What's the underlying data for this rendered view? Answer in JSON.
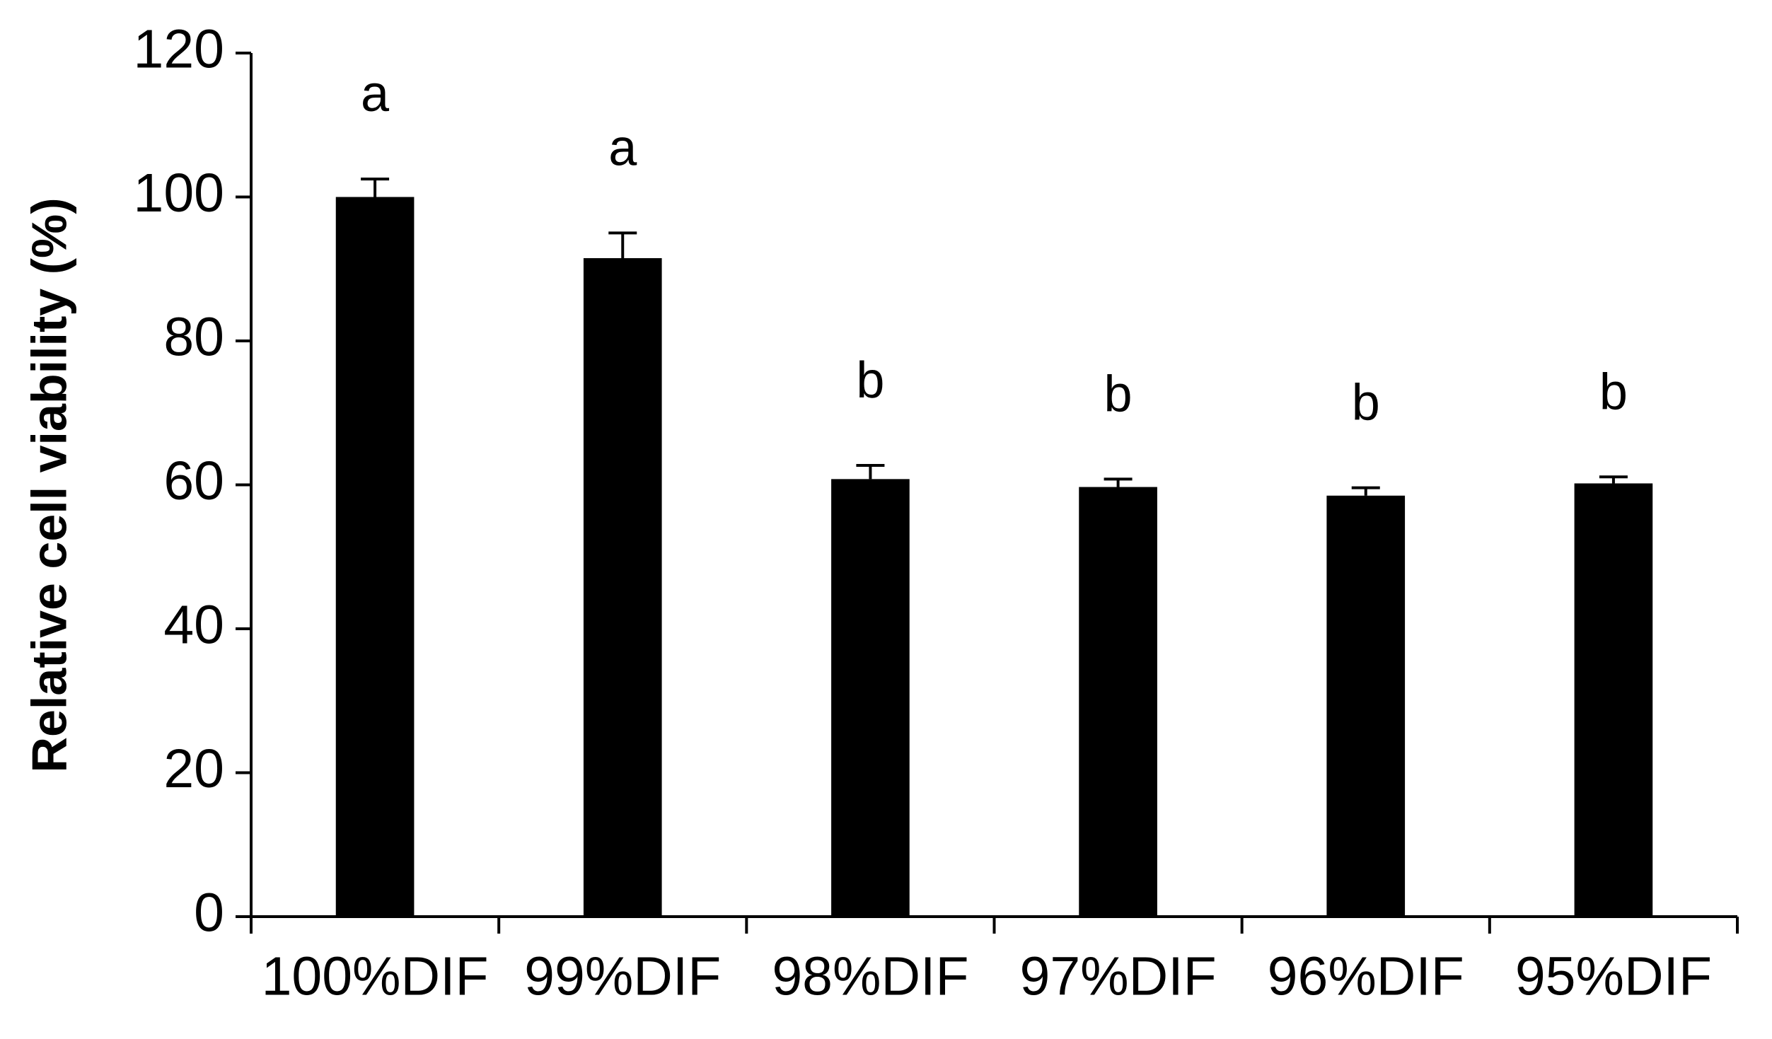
{
  "chart_data": {
    "type": "bar",
    "y_label": "Relative cell viability (%)",
    "categories": [
      "100%DIF",
      "99%DIF",
      "98%DIF",
      "97%DIF",
      "96%DIF",
      "95%DIF"
    ],
    "values": [
      100,
      91.5,
      60.8,
      59.7,
      58.5,
      60.2
    ],
    "errors": [
      2.5,
      3.5,
      1.9,
      1.1,
      1.1,
      0.9
    ],
    "annotations": [
      "a",
      "a",
      "b",
      "b",
      "b",
      "b"
    ],
    "color": "#000000",
    "ylim": [
      0,
      120
    ],
    "yticks": [
      0,
      20,
      40,
      60,
      80,
      100,
      120
    ],
    "grid": false
  }
}
